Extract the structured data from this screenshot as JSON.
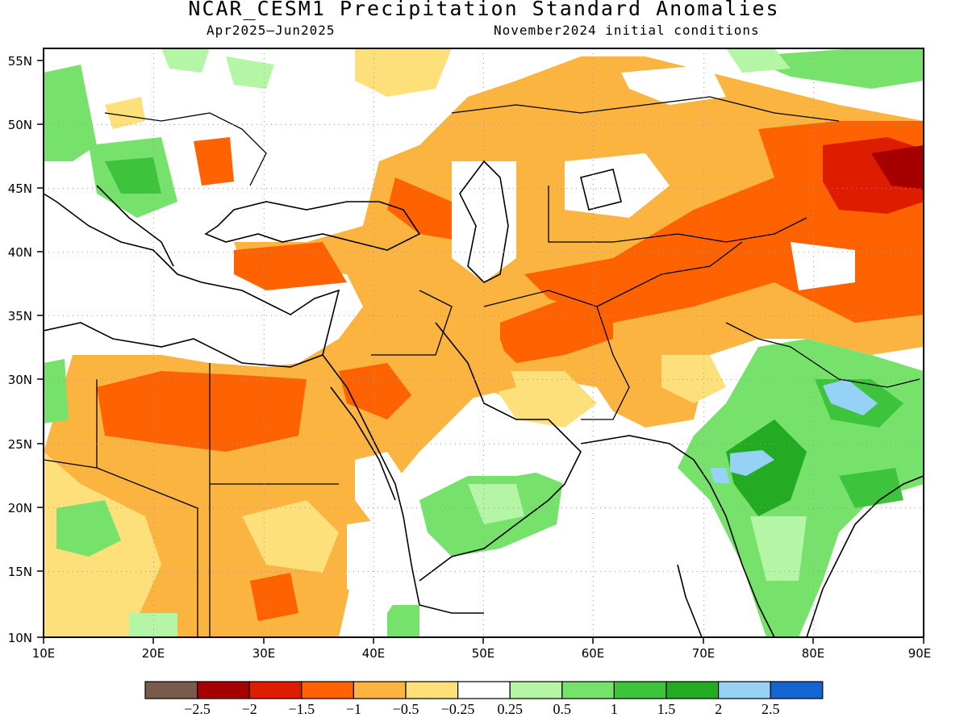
{
  "title": "NCAR_CESM1 Precipitation Standard Anomalies",
  "subtitle_left": "Apr2025–Jun2025",
  "subtitle_right": "November2024 initial conditions",
  "lat_labels": [
    "55N",
    "50N",
    "45N",
    "40N",
    "35N",
    "30N",
    "25N",
    "20N",
    "15N",
    "10N"
  ],
  "lon_labels": [
    "10E",
    "20E",
    "30E",
    "40E",
    "50E",
    "60E",
    "70E",
    "80E",
    "90E"
  ],
  "colorbar": {
    "colors": [
      "#7a5a4a",
      "#a60000",
      "#dd1c00",
      "#ff6200",
      "#fbb440",
      "#fde07a",
      "#ffffff",
      "#b4f5a6",
      "#76e26c",
      "#3ec43c",
      "#24ab24",
      "#96d2f5",
      "#1464d2"
    ],
    "labels": [
      "−2.5",
      "−2",
      "−1.5",
      "−1",
      "−0.5",
      "−0.25",
      "0.25",
      "0.5",
      "1",
      "1.5",
      "2",
      "2.5"
    ]
  }
}
